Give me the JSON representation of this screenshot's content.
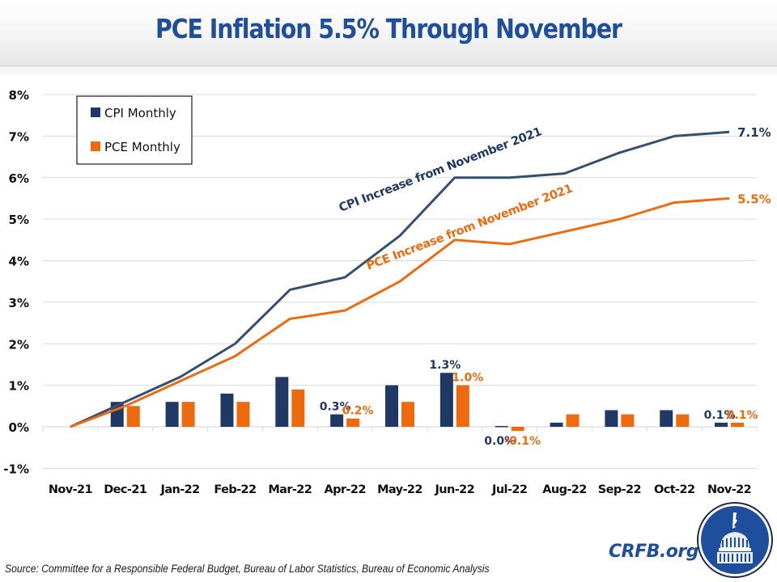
{
  "header": {
    "title": "PCE Inflation 5.5% Through November"
  },
  "footer": {
    "source": "Source: Committee for a Responsible Federal Budget, Bureau of Labor Statistics, Bureau of Economic Analysis",
    "site": "CRFB.org",
    "logo_icon": "capitol-dome-logo-icon"
  },
  "colors": {
    "cpi": "#1f3864",
    "cpi_line": "#34506f",
    "pce": "#ed6a0f",
    "title": "#1f4e9c",
    "grid": "#d9d9d9"
  },
  "chart_data": {
    "type": "bar",
    "combo": "bar+line",
    "title": "PCE Inflation 5.5% Through November",
    "xlabel": "",
    "ylabel": "",
    "ylim": [
      -1,
      8
    ],
    "yticks": [
      -1,
      0,
      1,
      2,
      3,
      4,
      5,
      6,
      7,
      8
    ],
    "ytick_labels": [
      "-1%",
      "0%",
      "1%",
      "2%",
      "3%",
      "4%",
      "5%",
      "6%",
      "7%",
      "8%"
    ],
    "grid": true,
    "legend_position": "top-left",
    "categories": [
      "Nov-21",
      "Dec-21",
      "Jan-22",
      "Feb-22",
      "Mar-22",
      "Apr-22",
      "May-22",
      "Jun-22",
      "Jul-22",
      "Aug-22",
      "Sep-22",
      "Oct-22",
      "Nov-22"
    ],
    "series": [
      {
        "name": "CPI Monthly",
        "kind": "bar",
        "color": "#1f3864",
        "values": [
          null,
          0.6,
          0.6,
          0.8,
          1.2,
          0.3,
          1.0,
          1.3,
          0.0,
          0.1,
          0.4,
          0.4,
          0.1
        ],
        "data_labels": {
          "5": "0.3%",
          "7": "1.3%",
          "8": "0.0%",
          "12": "0.1%"
        }
      },
      {
        "name": "PCE Monthly",
        "kind": "bar",
        "color": "#ed6a0f",
        "values": [
          null,
          0.5,
          0.6,
          0.6,
          0.9,
          0.2,
          0.6,
          1.0,
          -0.1,
          0.3,
          0.3,
          0.3,
          0.1
        ],
        "data_labels": {
          "5": "0.2%",
          "7": "1.0%",
          "8": "-0.1%",
          "12": "0.1%"
        }
      },
      {
        "name": "CPI Increase from November 2021",
        "kind": "line",
        "color": "#34506f",
        "values": [
          0.0,
          0.6,
          1.2,
          2.0,
          3.3,
          3.6,
          4.6,
          6.0,
          6.0,
          6.1,
          6.6,
          7.0,
          7.1
        ],
        "end_label": "7.1%"
      },
      {
        "name": "PCE Increase from November 2021",
        "kind": "line",
        "color": "#ed6a0f",
        "values": [
          0.0,
          0.5,
          1.1,
          1.7,
          2.6,
          2.8,
          3.5,
          4.5,
          4.4,
          4.7,
          5.0,
          5.4,
          5.5
        ],
        "end_label": "5.5%"
      }
    ],
    "annotations": [
      {
        "text": "CPI Increase from November 2021",
        "series": "CPI Increase from November 2021"
      },
      {
        "text": "PCE Increase from November 2021",
        "series": "PCE Increase from November 2021"
      }
    ],
    "legend": [
      "CPI Monthly",
      "PCE Monthly"
    ]
  }
}
